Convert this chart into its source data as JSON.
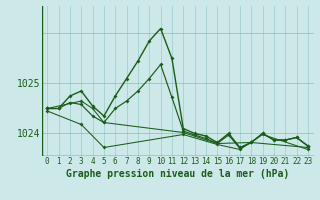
{
  "background_color": "#cce8e8",
  "grid_color_v": "#aad4d4",
  "grid_color_h": "#ff9999",
  "line_color": "#1a5c1a",
  "hours": [
    0,
    1,
    2,
    3,
    4,
    5,
    6,
    7,
    8,
    9,
    10,
    11,
    12,
    13,
    14,
    15,
    16,
    17,
    18,
    19,
    20,
    21,
    22,
    23
  ],
  "s1": [
    1024.5,
    1024.5,
    1024.75,
    1024.85,
    1024.55,
    1024.35,
    1024.75,
    1025.1,
    1025.45,
    1025.85,
    1026.1,
    1025.5,
    1024.1,
    1024.0,
    1023.95,
    1023.82,
    1024.0,
    1023.72,
    1023.82,
    1024.0,
    1023.87,
    1023.87,
    1023.92,
    1023.75
  ],
  "s2": [
    1024.5,
    1024.5,
    1024.62,
    1024.58,
    1024.35,
    1024.22,
    1024.5,
    1024.65,
    1024.85,
    1025.1,
    1025.38,
    1024.72,
    1024.05,
    1023.97,
    1023.9,
    1023.8,
    1023.97,
    1023.7,
    1023.82,
    1024.0,
    1023.87,
    1023.87,
    1023.92,
    1023.75
  ],
  "s3_x": [
    0,
    3,
    4,
    5,
    12,
    15,
    18,
    23
  ],
  "s3_y": [
    1024.5,
    1024.65,
    1024.5,
    1024.22,
    1024.02,
    1023.8,
    1023.82,
    1023.72
  ],
  "s4_x": [
    0,
    3,
    5,
    12,
    15,
    17,
    19,
    23
  ],
  "s4_y": [
    1024.45,
    1024.18,
    1023.72,
    1023.98,
    1023.78,
    1023.68,
    1023.98,
    1023.68
  ],
  "ylim_min": 1023.55,
  "ylim_max": 1026.55,
  "yticks": [
    1024,
    1025
  ],
  "xlabel": "Graphe pression niveau de la mer (hPa)",
  "fontsize_xlabel": 7,
  "fontsize_yticks": 7,
  "fontsize_xticks": 5.5
}
